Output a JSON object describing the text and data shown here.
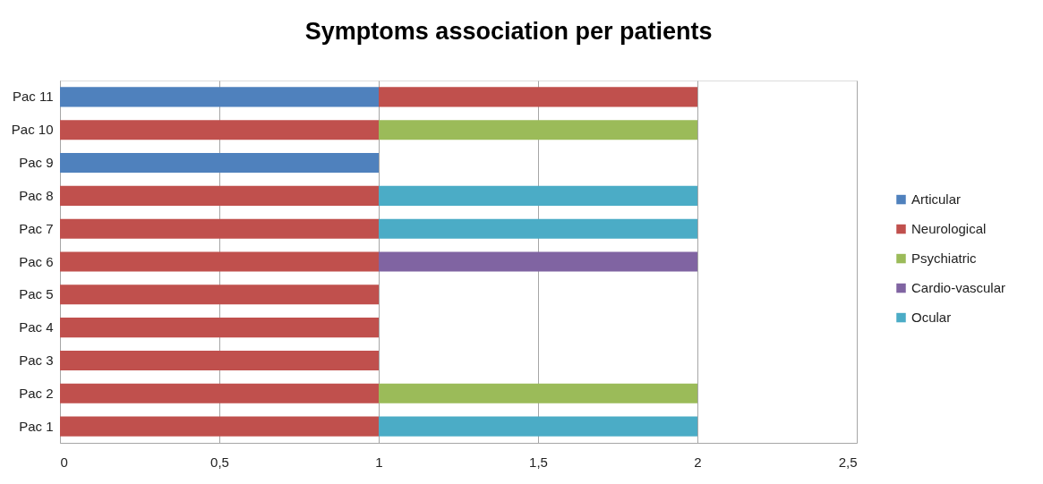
{
  "chart_data": {
    "type": "bar",
    "orientation": "horizontal",
    "stacked": true,
    "title": "Symptoms association per patients",
    "categories": [
      "Pac 11",
      "Pac 10",
      "Pac 9",
      "Pac 8",
      "Pac 7",
      "Pac 6",
      "Pac 5",
      "Pac 4",
      "Pac 3",
      "Pac 2",
      "Pac 1"
    ],
    "series": [
      {
        "name": "Articular",
        "color": "#4f81bd",
        "values": [
          1,
          null,
          1,
          null,
          null,
          null,
          null,
          null,
          null,
          null,
          null
        ]
      },
      {
        "name": "Neurological",
        "color": "#c0504d",
        "values": [
          1,
          1,
          null,
          1,
          1,
          1,
          1,
          1,
          1,
          1,
          1
        ]
      },
      {
        "name": "Psychiatric",
        "color": "#9bbb59",
        "values": [
          null,
          1,
          null,
          null,
          null,
          null,
          null,
          null,
          null,
          1,
          null
        ]
      },
      {
        "name": "Cardio-vascular",
        "color": "#8064a2",
        "values": [
          null,
          null,
          null,
          null,
          null,
          1,
          null,
          null,
          null,
          null,
          null
        ]
      },
      {
        "name": "Ocular",
        "color": "#4bacc6",
        "values": [
          null,
          null,
          null,
          1,
          1,
          null,
          null,
          null,
          null,
          null,
          1
        ]
      }
    ],
    "xlim": [
      0,
      2.5
    ],
    "xticks": [
      0,
      {
        "value": 0.5,
        "label": "0,5"
      },
      1,
      {
        "value": 1.5,
        "label": "1,5"
      },
      2,
      {
        "value": 2.5,
        "label": "2,5"
      }
    ],
    "grid": "x",
    "legend": "right"
  }
}
